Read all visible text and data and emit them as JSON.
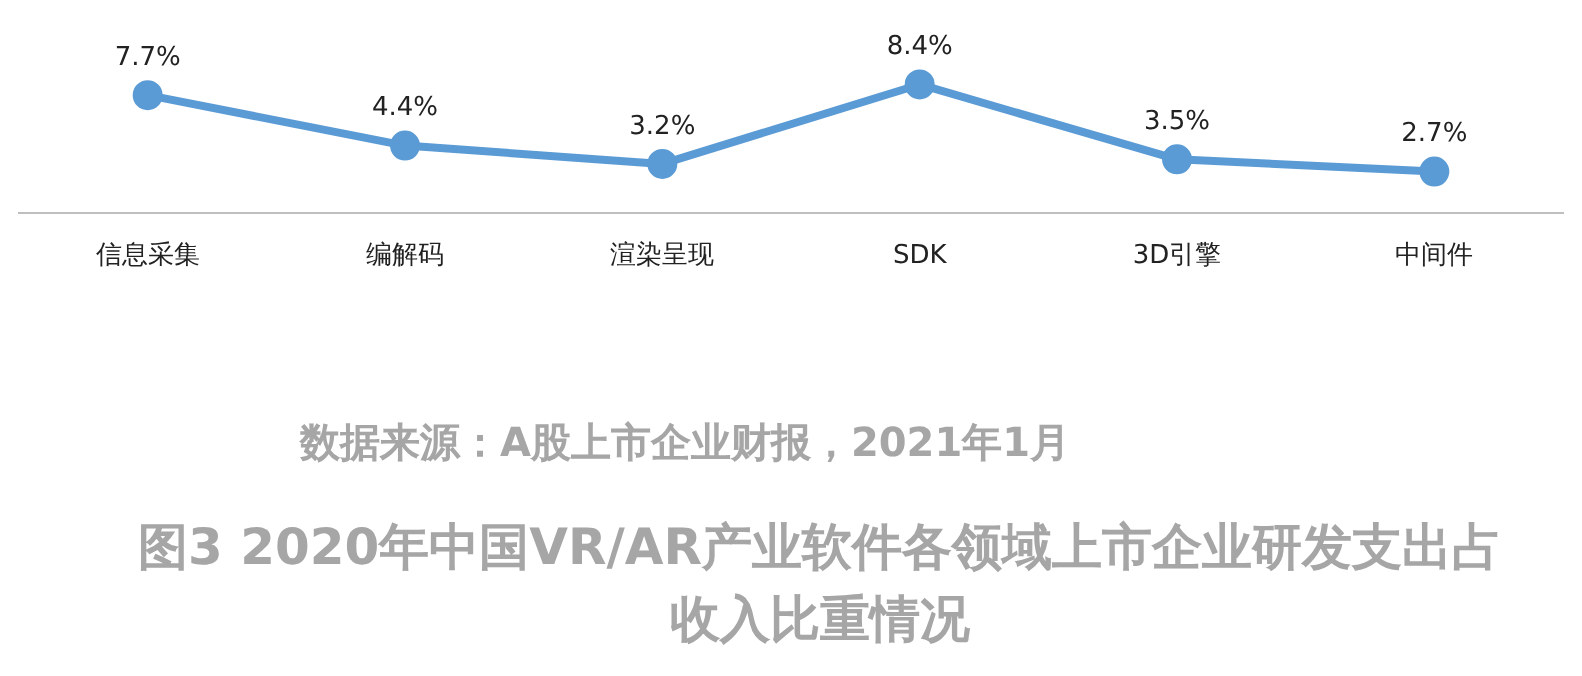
{
  "chart_data": {
    "type": "line",
    "title": "图3 2020年中国VR/AR产业软件各领域上市企业研发支出占收入比重情况",
    "categories": [
      "信息采集",
      "编解码",
      "渲染呈现",
      "SDK",
      "3D引擎",
      "中间件"
    ],
    "series": [
      {
        "color": "#5b9bd5",
        "values": [
          7.7,
          4.4,
          3.2,
          8.4,
          3.5,
          2.7
        ],
        "value_labels": [
          "7.7%",
          "4.4%",
          "3.2%",
          "8.4%",
          "3.5%",
          "2.7%"
        ]
      }
    ],
    "tick_labels": "x",
    "grid": false,
    "legend": false,
    "marker": "circle",
    "line_style": "solid",
    "annotations": [
      "数据来源：A股上市企业财报，2021年1月"
    ]
  }
}
